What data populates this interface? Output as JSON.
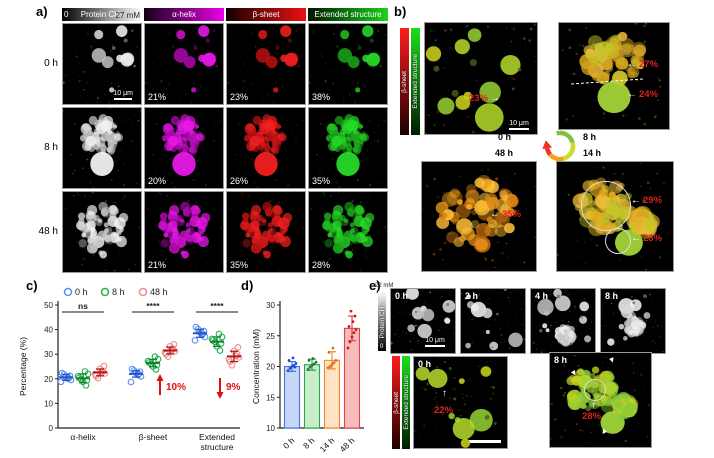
{
  "panel_a": {
    "label": "a)",
    "colorbar": {
      "min": "0",
      "title": "Protein CH₃",
      "max": "27 mM"
    },
    "channels": [
      "α-helix",
      "β-sheet",
      "Extended structure"
    ],
    "scale_bar": "10 μm",
    "rows": [
      {
        "time": "0 h",
        "pct": [
          "21%",
          "23%",
          "38%"
        ]
      },
      {
        "time": "8 h",
        "pct": [
          "20%",
          "26%",
          "35%"
        ]
      },
      {
        "time": "48 h",
        "pct": [
          "21%",
          "35%",
          "28%"
        ]
      }
    ]
  },
  "panel_b": {
    "label": "b)",
    "colorbars": [
      "β-sheet",
      "Extended structure"
    ],
    "scale_bar": "10 μm",
    "times": [
      "0 h",
      "8 h",
      "48 h",
      "14 h"
    ],
    "annotations": {
      "img0": [
        "23%"
      ],
      "img1": [
        "27%",
        "24%"
      ],
      "img2": [
        "35%"
      ],
      "img3": [
        "29%",
        "23%"
      ]
    }
  },
  "panel_c": {
    "label": "c)"
  },
  "panel_d": {
    "label": "d)"
  },
  "panel_e": {
    "label": "e)",
    "colorbar": {
      "max": "22 mM",
      "title": "Protein CH₃",
      "min": "0"
    },
    "times": [
      "0 h",
      "2 h",
      "4 h",
      "8 h"
    ],
    "scale_bar": "10 μm",
    "colorbars": [
      "β-sheet",
      "Extended structure"
    ],
    "bottom_images": [
      {
        "time": "0 h",
        "pct": "22%"
      },
      {
        "time": "8 h",
        "pct": "28%"
      }
    ]
  },
  "chart_data": [
    {
      "type": "scatter",
      "panel": "c",
      "title": "",
      "ylabel": "Percentage (%)",
      "ylim": [
        0,
        50
      ],
      "yticks": [
        0,
        10,
        20,
        30,
        40,
        50
      ],
      "categories": [
        "α-helix",
        "β-sheet",
        "Extended structure"
      ],
      "legend_position": "top",
      "series": [
        {
          "name": "0 h",
          "color": "#5b8ff0",
          "dark": "#2653cc",
          "means": [
            20.6,
            22.0,
            38.5
          ],
          "sd": [
            1.2,
            1.3,
            1.6
          ],
          "points_by_cat": [
            [
              18.8,
              19.5,
              20.0,
              20.3,
              20.7,
              21.2,
              21.8,
              22.3
            ],
            [
              18.7,
              21.0,
              21.6,
              22.0,
              22.4,
              22.9,
              23.4,
              24.0
            ],
            [
              35.6,
              37.0,
              37.8,
              38.3,
              38.8,
              39.4,
              40.2,
              41.0
            ]
          ]
        },
        {
          "name": "8 h",
          "color": "#27b14a",
          "dark": "#14802f",
          "means": [
            20.2,
            26.4,
            35.1
          ],
          "sd": [
            1.8,
            1.5,
            1.9
          ],
          "points_by_cat": [
            [
              17.3,
              18.8,
              19.4,
              19.9,
              20.4,
              21.0,
              22.0,
              23.0
            ],
            [
              23.8,
              25.0,
              25.6,
              26.1,
              26.6,
              27.2,
              28.0,
              29.0
            ],
            [
              31.5,
              33.2,
              34.3,
              35.0,
              35.6,
              36.2,
              37.0,
              38.2
            ]
          ]
        },
        {
          "name": "48 h",
          "color": "#f08a8a",
          "dark": "#b01818",
          "means": [
            22.6,
            31.5,
            29.1
          ],
          "sd": [
            1.4,
            1.4,
            2.1
          ],
          "points_by_cat": [
            [
              20.3,
              21.2,
              21.8,
              22.2,
              22.7,
              23.2,
              24.0,
              25.2
            ],
            [
              29.0,
              30.0,
              30.7,
              31.2,
              31.7,
              32.3,
              33.2,
              34.0
            ],
            [
              25.5,
              27.0,
              28.0,
              28.7,
              29.3,
              30.2,
              31.3,
              32.8
            ]
          ]
        }
      ],
      "significance": [
        "ns",
        "****",
        "****"
      ],
      "annotations": [
        {
          "category": "β-sheet",
          "text": "10%",
          "direction": "up"
        },
        {
          "category": "Extended structure",
          "text": "9%",
          "direction": "down"
        }
      ]
    },
    {
      "type": "bar",
      "panel": "d",
      "title": "",
      "ylabel": "Concentration (mM)",
      "ylim": [
        10,
        30
      ],
      "yticks": [
        10,
        15,
        20,
        25,
        30
      ],
      "categories": [
        "0 h",
        "8 h",
        "14 h",
        "48 h"
      ],
      "values": [
        20.0,
        20.3,
        21.0,
        26.2
      ],
      "errors": [
        0.8,
        0.9,
        1.4,
        2.0
      ],
      "bar_fill": [
        "#c6d7f7",
        "#c9ecca",
        "#ffe3c4",
        "#f6bcbc"
      ],
      "bar_edge": [
        "#4472e0",
        "#2fa44e",
        "#f28c28",
        "#dd4444"
      ],
      "point_color": [
        "#1f4fd8",
        "#1d7a33",
        "#e0701a",
        "#c42020"
      ],
      "points": [
        [
          19.3,
          19.7,
          20.0,
          20.2,
          20.5,
          21.0,
          21.4,
          19.9
        ],
        [
          19.5,
          19.9,
          20.2,
          20.4,
          20.7,
          21.0,
          21.3
        ],
        [
          19.8,
          20.0,
          20.3,
          20.6,
          21.0,
          22.3,
          23.0
        ],
        [
          23.0,
          24.0,
          24.8,
          25.5,
          26.0,
          26.5,
          27.3,
          28.2,
          29.0
        ]
      ]
    }
  ]
}
